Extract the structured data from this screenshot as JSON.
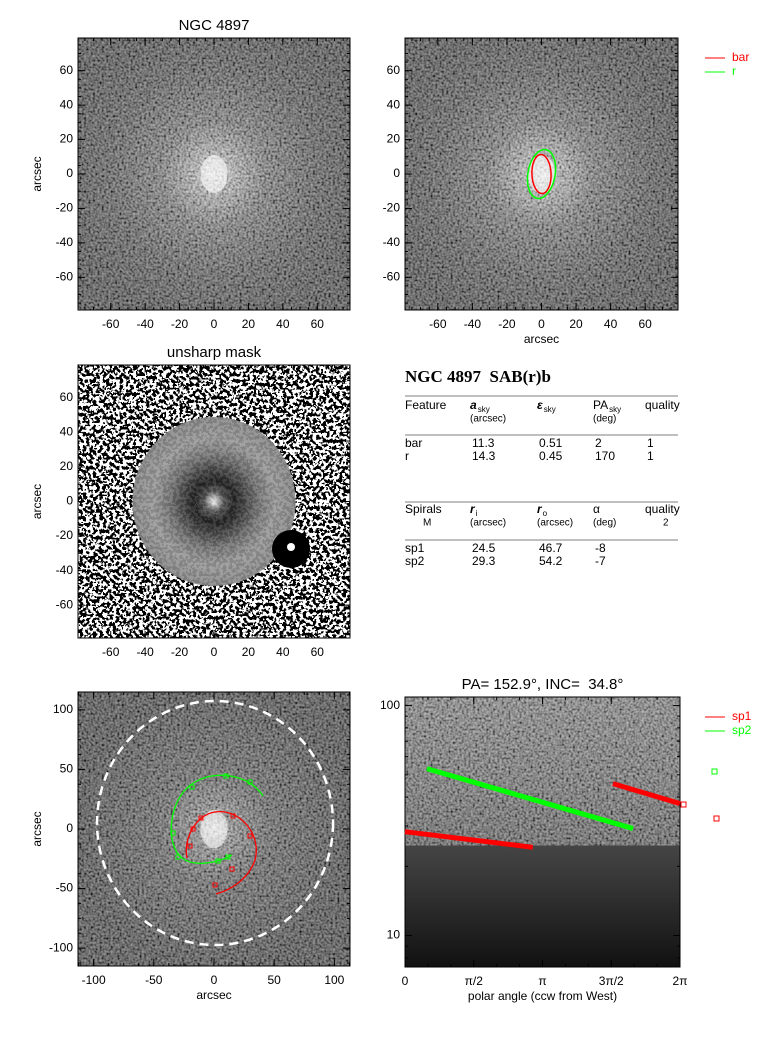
{
  "chart_data": [
    {
      "type": "image",
      "title": "NGC 4897",
      "ylabel": "arcsec",
      "xlim": [
        -79,
        79
      ],
      "ylim": [
        -79,
        79
      ],
      "xticks": [
        -60,
        -40,
        -20,
        0,
        20,
        40,
        60
      ],
      "yticks": [
        -60,
        -40,
        -20,
        0,
        20,
        40,
        60
      ]
    },
    {
      "type": "image",
      "xlabel": "arcsec",
      "xlim": [
        -79,
        79
      ],
      "ylim": [
        -79,
        79
      ],
      "xticks": [
        -60,
        -40,
        -20,
        0,
        20,
        40,
        60
      ],
      "yticks": [
        -60,
        -40,
        -20,
        0,
        20,
        40,
        60
      ],
      "legend_position": "outside right",
      "series": [
        {
          "name": "bar",
          "color": "#ff0000"
        },
        {
          "name": "r",
          "color": "#00ff00"
        }
      ]
    },
    {
      "type": "image",
      "title": "unsharp mask",
      "ylabel": "arcsec",
      "xlim": [
        -79,
        79
      ],
      "ylim": [
        -79,
        79
      ],
      "xticks": [
        -60,
        -40,
        -20,
        0,
        20,
        40,
        60
      ],
      "yticks": [
        -60,
        -40,
        -20,
        0,
        20,
        40,
        60
      ]
    },
    {
      "type": "image",
      "xlabel": "arcsec",
      "ylabel": "arcsec",
      "xlim": [
        -113,
        113
      ],
      "ylim": [
        -115,
        115
      ],
      "xticks": [
        -100,
        -50,
        0,
        50,
        100
      ],
      "yticks": [
        -100,
        -50,
        0,
        50,
        100
      ]
    },
    {
      "type": "line",
      "title": "PA= 152.9°, INC=  34.8°",
      "xlabel": "polar angle (ccw from West)",
      "xlim": [
        0,
        6.2832
      ],
      "ylim": [
        7.3,
        109
      ],
      "log_y": true,
      "xticks": [
        0,
        {
          "value": 1.5708,
          "label": "π/2"
        },
        {
          "value": 3.1416,
          "label": "π"
        },
        {
          "value": 4.7124,
          "label": "3π/2"
        },
        {
          "value": 6.2832,
          "label": "2π"
        }
      ],
      "yticks": [
        10,
        100
      ],
      "legend_position": "outside right",
      "series": [
        {
          "name": "sp1",
          "color": "#ff0000",
          "x": [
            0,
            2.92,
            null,
            4.75,
            6.28
          ],
          "values": [
            28.3,
            24.2,
            null,
            45.8,
            37.5
          ]
        },
        {
          "name": "sp2",
          "color": "#00ff00",
          "x": [
            0.5,
            5.21
          ],
          "values": [
            53.2,
            29.2
          ]
        }
      ]
    }
  ],
  "table": {
    "title": "NGC 4897  SAB(r)b",
    "bars_header": [
      {
        "text": "Feature"
      },
      {
        "text": "a",
        "sub": "sky",
        "below": "(arcsec)"
      },
      {
        "text": "ε",
        "sub": "sky"
      },
      {
        "text": "PA",
        "sub": "sky",
        "below": "(deg)"
      },
      {
        "text": "quality"
      }
    ],
    "bars_rows": [
      [
        "bar",
        11.3,
        0.51,
        2,
        1
      ],
      [
        "r",
        14.3,
        0.45,
        170,
        1
      ]
    ],
    "spirals_header": [
      {
        "text": "Spirals",
        "below": "M"
      },
      {
        "text": "r",
        "sub": "i",
        "below": "(arcsec)"
      },
      {
        "text": "r",
        "sub": "o",
        "below": "(arcsec)"
      },
      {
        "text": "α",
        "below": "(deg)"
      },
      {
        "text": "quality",
        "below": "2"
      }
    ],
    "spirals_rows": [
      [
        "sp1",
        24.5,
        46.7,
        -8
      ],
      [
        "sp2",
        29.3,
        54.2,
        -7
      ]
    ]
  }
}
